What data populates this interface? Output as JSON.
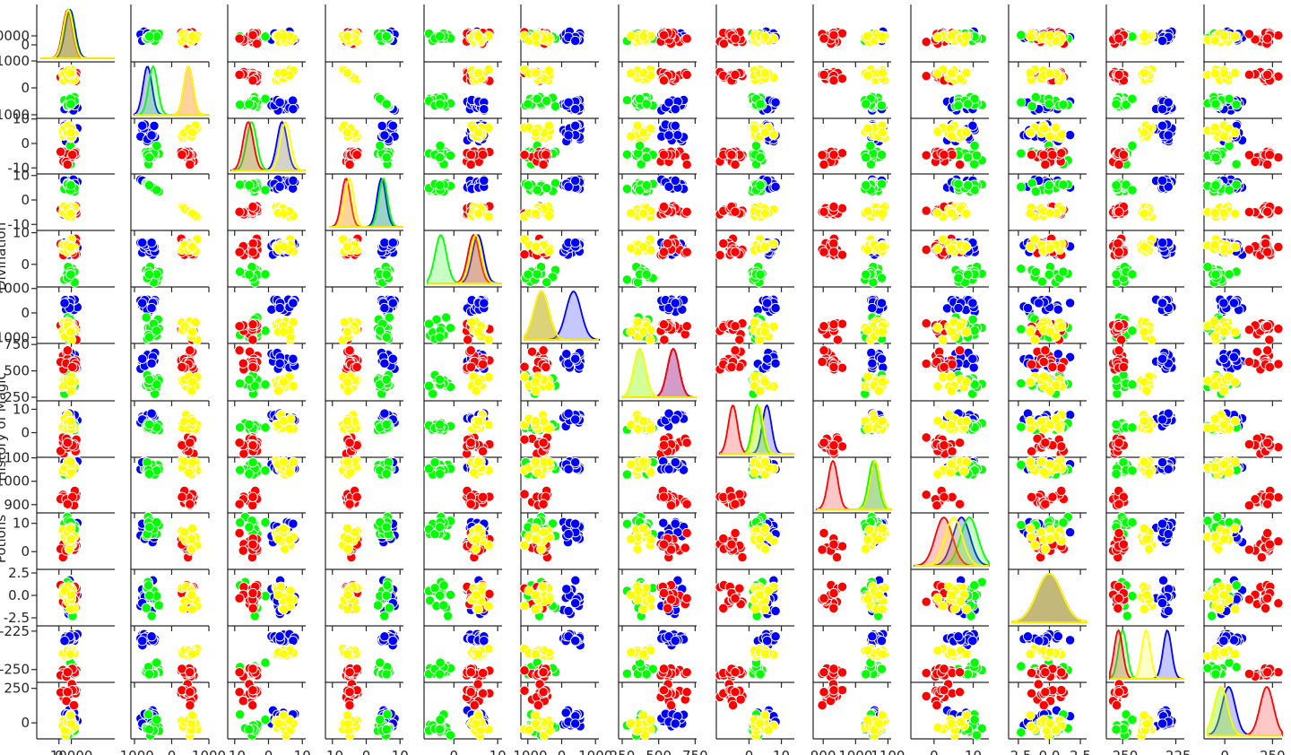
{
  "chart_data": {
    "type": "scatter",
    "title": "",
    "houses": [
      {
        "color": "#0000ff"
      },
      {
        "color": "#00ff00"
      },
      {
        "color": "#ff0000"
      },
      {
        "color": "#ffff00"
      }
    ],
    "variables": [
      {
        "label": "",
        "ticks": [
          0,
          10000
        ],
        "tick_labels": [
          "0",
          "10000"
        ],
        "range": [
          -15000,
          45000
        ],
        "means": [
          9000,
          8000,
          7000,
          7500
        ],
        "sd": 4000,
        "yticks_shown": [
          "0",
          "10000"
        ]
      },
      {
        "label": "",
        "ticks": [
          -1000,
          0,
          1000
        ],
        "tick_labels": [
          "-1000",
          "0",
          "1000"
        ],
        "range": [
          -1000,
          1000
        ],
        "means": [
          -650,
          -500,
          450,
          450
        ],
        "sd": 120
      },
      {
        "label": "",
        "ticks": [
          -10,
          0,
          10
        ],
        "tick_labels": [
          "-10",
          "0",
          "10"
        ],
        "range": [
          -11,
          11
        ],
        "means": [
          4,
          -5,
          -6,
          5
        ],
        "sd": 1.5
      },
      {
        "label": "",
        "ticks": [
          -10,
          0,
          10
        ],
        "tick_labels": [
          "-10",
          "0",
          "10"
        ],
        "range": [
          -11,
          11
        ],
        "means": [
          4.5,
          5,
          -6,
          -5
        ],
        "sd": 1.3
      },
      {
        "label": "Divination",
        "ticks": [
          0,
          10
        ],
        "tick_labels": [
          "0",
          "10"
        ],
        "range": [
          -6,
          11
        ],
        "means": [
          5.5,
          -3,
          4.5,
          5
        ],
        "sd": 1.3
      },
      {
        "label": "",
        "ticks": [
          -1000,
          0,
          1000
        ],
        "tick_labels": [
          "-1000",
          "0",
          "1000"
        ],
        "range": [
          -1100,
          1100
        ],
        "means": [
          350,
          -600,
          -600,
          -600
        ],
        "sd": 220
      },
      {
        "label": "",
        "ticks": [
          250,
          500,
          750
        ],
        "tick_labels": [
          "250",
          "500",
          "750"
        ],
        "range": [
          250,
          760
        ],
        "means": [
          600,
          370,
          600,
          370
        ],
        "sd": 40
      },
      {
        "label": "History of Magic",
        "ticks": [
          0,
          10
        ],
        "tick_labels": [
          "0",
          "10"
        ],
        "range": [
          -9,
          14
        ],
        "means": [
          5.5,
          2.5,
          -5,
          3
        ],
        "sd": 1.4
      },
      {
        "label": "",
        "ticks": [
          900,
          1000,
          1100
        ],
        "tick_labels": [
          "900",
          "1000",
          "1100"
        ],
        "range": [
          880,
          1110
        ],
        "means": [
          1060,
          1055,
          930,
          1060
        ],
        "sd": 15
      },
      {
        "label": "Potions",
        "ticks": [
          0,
          10
        ],
        "tick_labels": [
          "0",
          "10"
        ],
        "range": [
          -5,
          14
        ],
        "means": [
          7,
          9,
          2.5,
          5
        ],
        "sd": 2.2
      },
      {
        "label": "",
        "ticks": [
          -2.5,
          0.0,
          2.5
        ],
        "tick_labels": [
          "-2.5",
          "0.0",
          "2.5"
        ],
        "range": [
          -3,
          3
        ],
        "means": [
          0,
          0,
          0,
          0
        ],
        "sd": 1
      },
      {
        "label": "",
        "ticks": [
          -250,
          -225
        ],
        "tick_labels": [
          "-250",
          "-225"
        ],
        "range": [
          -256,
          -221
        ],
        "means": [
          -229,
          -250,
          -252,
          -239
        ],
        "sd": 2
      },
      {
        "label": "",
        "ticks": [
          0,
          250
        ],
        "tick_labels": [
          "0",
          "250"
        ],
        "range": [
          -90,
          300
        ],
        "means": [
          20,
          -20,
          220,
          -20
        ],
        "sd": 35
      }
    ]
  }
}
